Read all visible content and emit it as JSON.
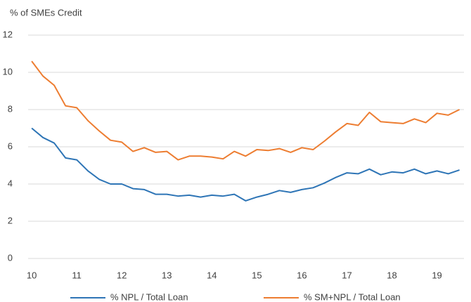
{
  "chart_data": {
    "type": "line",
    "y_label": "% of SMEs Credit",
    "x": [
      10,
      10.25,
      10.5,
      10.75,
      11,
      11.25,
      11.5,
      11.75,
      12,
      12.25,
      12.5,
      12.75,
      13,
      13.25,
      13.5,
      13.75,
      14,
      14.25,
      14.5,
      14.75,
      15,
      15.25,
      15.5,
      15.75,
      16,
      16.25,
      16.5,
      16.75,
      17,
      17.25,
      17.5,
      17.75,
      18,
      18.25,
      18.5,
      18.75,
      19,
      19.25,
      19.5
    ],
    "series": [
      {
        "name": "% NPL / Total Loan",
        "color": "#2e75b6",
        "values": [
          7.0,
          6.5,
          6.2,
          5.4,
          5.3,
          4.7,
          4.25,
          4.0,
          4.0,
          3.75,
          3.7,
          3.45,
          3.45,
          3.35,
          3.4,
          3.3,
          3.4,
          3.35,
          3.45,
          3.1,
          3.3,
          3.45,
          3.65,
          3.55,
          3.7,
          3.8,
          4.05,
          4.35,
          4.6,
          4.55,
          4.8,
          4.5,
          4.65,
          4.6,
          4.8,
          4.55,
          4.7,
          4.55,
          4.75
        ]
      },
      {
        "name": "% SM+NPL / Total Loan",
        "color": "#ed7d31",
        "values": [
          10.6,
          9.8,
          9.3,
          8.2,
          8.1,
          7.4,
          6.85,
          6.35,
          6.25,
          5.75,
          5.95,
          5.7,
          5.75,
          5.3,
          5.5,
          5.5,
          5.45,
          5.35,
          5.75,
          5.5,
          5.85,
          5.8,
          5.9,
          5.7,
          5.95,
          5.85,
          6.3,
          6.8,
          7.25,
          7.15,
          7.85,
          7.35,
          7.3,
          7.25,
          7.5,
          7.3,
          7.8,
          7.7,
          8.0
        ]
      }
    ],
    "xlim": [
      9.92,
      19.6
    ],
    "xticks": [
      10,
      11,
      12,
      13,
      14,
      15,
      16,
      17,
      18,
      19
    ],
    "ylim": [
      0,
      12
    ],
    "yticks": [
      0,
      2,
      4,
      6,
      8,
      10,
      12
    ],
    "grid": true
  }
}
